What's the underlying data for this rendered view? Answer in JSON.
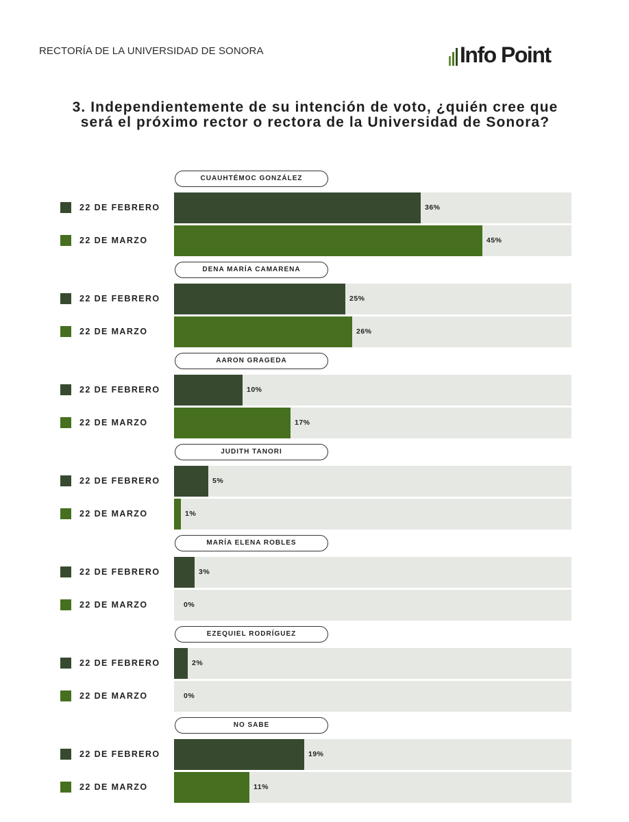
{
  "header": {
    "source_label": "RECTORÍA DE LA UNIVERSIDAD DE SONORA",
    "logo_text": "Info Point"
  },
  "question": "3. Independientemente de su intención de voto, ¿quién cree que será el próximo rector o rectora de la Universidad de Sonora?",
  "colors": {
    "series_1": "#374a2f",
    "series_2": "#46701f",
    "track": "#e6e8e3"
  },
  "chart_data": {
    "type": "bar",
    "orientation": "horizontal",
    "title": "3. Independientemente de su intención de voto, ¿quién cree que será el próximo rector o rectora de la Universidad de Sonora?",
    "categories": [
      "CUAUHTÉMOC GONZÁLEZ",
      "DENA MARÍA CAMARENA",
      "AARON GRAGEDA",
      "JUDITH TANORI",
      "MARÍA ELENA ROBLES",
      "EZEQUIEL RODRÍGUEZ",
      "NO SABE"
    ],
    "series": [
      {
        "name": "22 DE FEBRERO",
        "values": [
          36,
          25,
          10,
          5,
          3,
          2,
          19
        ],
        "labels": [
          "36%",
          "25%",
          "10%",
          "5%",
          "3%",
          "2%",
          "19%"
        ]
      },
      {
        "name": "22 DE MARZO",
        "values": [
          45,
          26,
          17,
          1,
          0,
          0,
          11
        ],
        "labels": [
          "45%",
          "26%",
          "17%",
          "1%",
          "0%",
          "0%",
          "11%"
        ]
      }
    ],
    "xlim": [
      0,
      58
    ],
    "unit": "%"
  }
}
